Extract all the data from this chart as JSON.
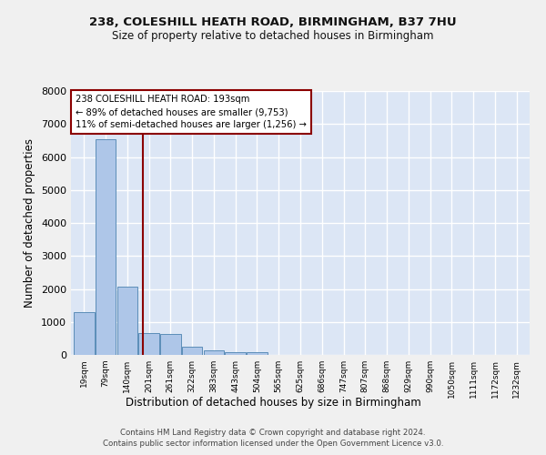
{
  "title1": "238, COLESHILL HEATH ROAD, BIRMINGHAM, B37 7HU",
  "title2": "Size of property relative to detached houses in Birmingham",
  "xlabel": "Distribution of detached houses by size in Birmingham",
  "ylabel": "Number of detached properties",
  "bar_labels": [
    "19sqm",
    "79sqm",
    "140sqm",
    "201sqm",
    "261sqm",
    "322sqm",
    "383sqm",
    "443sqm",
    "504sqm",
    "565sqm",
    "625sqm",
    "686sqm",
    "747sqm",
    "807sqm",
    "868sqm",
    "929sqm",
    "990sqm",
    "1050sqm",
    "1111sqm",
    "1172sqm",
    "1232sqm"
  ],
  "bar_values": [
    1300,
    6550,
    2080,
    650,
    645,
    250,
    130,
    80,
    80,
    10,
    5,
    5,
    2,
    2,
    1,
    1,
    1,
    0,
    0,
    0,
    0
  ],
  "bar_color": "#aec6e8",
  "bar_edge_color": "#5b8db8",
  "vline_color": "#8b0000",
  "vline_x": 2.72,
  "annotation_line1": "238 COLESHILL HEATH ROAD: 193sqm",
  "annotation_line2": "← 89% of detached houses are smaller (9,753)",
  "annotation_line3": "11% of semi-detached houses are larger (1,256) →",
  "annotation_box_color": "#ffffff",
  "annotation_box_edge": "#8b0000",
  "bg_color": "#dce6f5",
  "grid_color": "#ffffff",
  "ylim": [
    0,
    8000
  ],
  "yticks": [
    0,
    1000,
    2000,
    3000,
    4000,
    5000,
    6000,
    7000,
    8000
  ],
  "footer1": "Contains HM Land Registry data © Crown copyright and database right 2024.",
  "footer2": "Contains public sector information licensed under the Open Government Licence v3.0.",
  "fig_bg": "#f0f0f0"
}
